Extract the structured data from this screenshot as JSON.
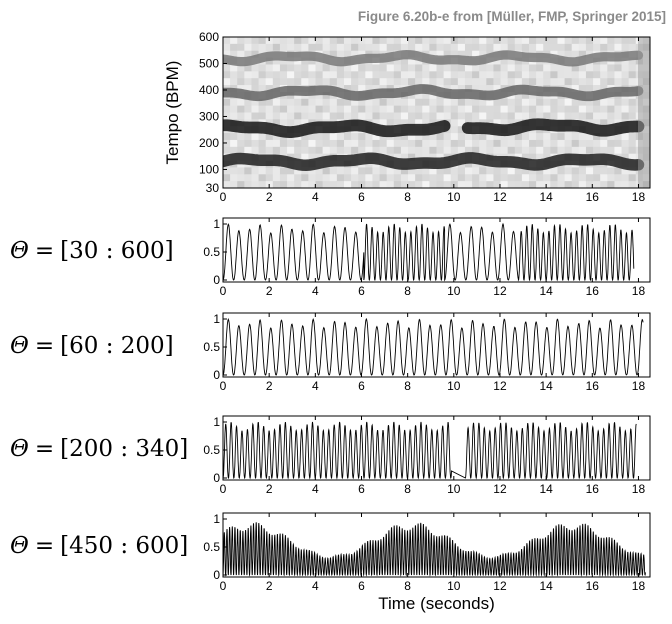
{
  "header": {
    "caption": "Figure 6.20b-e from [Müller, FMP, Springer 2015]"
  },
  "colors": {
    "axis": "#000000",
    "curve": "#000000",
    "caption": "#8a8a8a"
  },
  "chart_data": [
    {
      "type": "heatmap",
      "title": "",
      "xlabel": "",
      "ylabel": "Tempo (BPM)",
      "xlim": [
        0,
        18.5
      ],
      "ylim": [
        30,
        600
      ],
      "xticks": [
        0,
        2,
        4,
        6,
        8,
        10,
        12,
        14,
        16,
        18
      ],
      "yticks": [
        30,
        100,
        200,
        300,
        400,
        500,
        600
      ],
      "colormap": "gray (dark = high)",
      "bands": [
        {
          "tempo": 130,
          "x": [
            0,
            18
          ],
          "strength": 0.9
        },
        {
          "tempo": 255,
          "x": [
            0,
            9.6
          ],
          "strength": 0.95
        },
        {
          "tempo": 260,
          "x": [
            10.6,
            18
          ],
          "strength": 0.95
        },
        {
          "tempo": 390,
          "x": [
            0,
            18
          ],
          "strength": 0.55
        },
        {
          "tempo": 520,
          "x": [
            0,
            18
          ],
          "strength": 0.45
        }
      ]
    },
    {
      "type": "line",
      "theta": {
        "symbol": "Θ",
        "eq": "=",
        "range": "[30 : 600]"
      },
      "xlim": [
        0,
        18.5
      ],
      "ylim": [
        0,
        1
      ],
      "xticks": [
        0,
        2,
        4,
        6,
        8,
        10,
        12,
        14,
        16,
        18
      ],
      "yticks": [
        0,
        0.5,
        1
      ],
      "segments": [
        {
          "x": [
            0,
            6.1
          ],
          "period": 0.46
        },
        {
          "x": [
            6.1,
            9.6
          ],
          "period": 0.24
        },
        {
          "x": [
            9.6,
            12.8
          ],
          "period": 0.46
        },
        {
          "x": [
            12.8,
            17.8
          ],
          "period": 0.24
        }
      ]
    },
    {
      "type": "line",
      "theta": {
        "symbol": "Θ",
        "eq": "=",
        "range": "[60 : 200]"
      },
      "xlim": [
        0,
        18.5
      ],
      "ylim": [
        0,
        1
      ],
      "xticks": [
        0,
        2,
        4,
        6,
        8,
        10,
        12,
        14,
        16,
        18
      ],
      "yticks": [
        0,
        0.5,
        1
      ],
      "segments": [
        {
          "x": [
            0,
            18.2
          ],
          "period": 0.46
        }
      ]
    },
    {
      "type": "line",
      "theta": {
        "symbol": "Θ",
        "eq": "=",
        "range": "[200 : 340]"
      },
      "xlim": [
        0,
        18.5
      ],
      "ylim": [
        0,
        1
      ],
      "xticks": [
        0,
        2,
        4,
        6,
        8,
        10,
        12,
        14,
        16,
        18
      ],
      "yticks": [
        0,
        0.5,
        1
      ],
      "segments": [
        {
          "x": [
            0,
            9.9
          ],
          "period": 0.235
        },
        {
          "x": [
            10.5,
            17.9
          ],
          "period": 0.235
        }
      ]
    },
    {
      "type": "line",
      "theta": {
        "symbol": "Θ",
        "eq": "=",
        "range": "[450 : 600]"
      },
      "xlabel": "Time (seconds)",
      "xlim": [
        0,
        18.5
      ],
      "ylim": [
        0,
        1
      ],
      "xticks": [
        0,
        2,
        4,
        6,
        8,
        10,
        12,
        14,
        16,
        18
      ],
      "yticks": [
        0,
        0.5,
        1
      ],
      "segments": [
        {
          "x": [
            0,
            18.3
          ],
          "period": 0.115
        }
      ]
    }
  ]
}
